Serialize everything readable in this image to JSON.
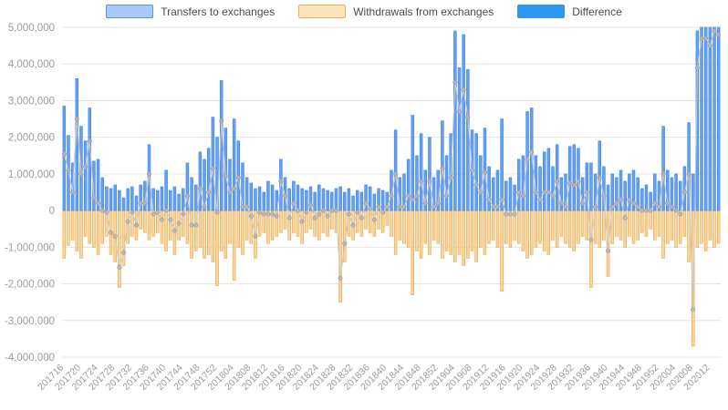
{
  "chart": {
    "background": "#ffffff",
    "legend": {
      "items": [
        {
          "label": "Transfers to exchanges",
          "fill": "#aac8f7",
          "border": "#5b94dd"
        },
        {
          "label": "Withdrawals from exchanges",
          "fill": "#fbe3bb",
          "border": "#f0ad55"
        },
        {
          "label": "Difference",
          "fill": "#2e96f3",
          "border": "#2e96f3"
        }
      ]
    },
    "axes": {
      "y_tick_labels": [
        "5,000,000",
        "4,000,000",
        "3,000,000",
        "2,000,000",
        "1,000,000",
        "0",
        "-1,000,000",
        "-2,000,000",
        "-3,000,000",
        "-4,000,000"
      ],
      "y_tick_values": [
        5000000,
        4000000,
        3000000,
        2000000,
        1000000,
        0,
        -1000000,
        -2000000,
        -3000000,
        -4000000
      ],
      "x_tick_labels": [
        "201716",
        "201720",
        "201724",
        "201728",
        "201732",
        "201736",
        "201740",
        "201744",
        "201748",
        "201752",
        "201804",
        "201808",
        "201812",
        "201816",
        "201820",
        "201824",
        "201828",
        "201832",
        "201836",
        "201840",
        "201844",
        "201848",
        "201852",
        "201904",
        "201908",
        "201912",
        "201916",
        "201920",
        "201924",
        "201928",
        "201932",
        "201936",
        "201940",
        "201944",
        "201948",
        "201952",
        "202004",
        "202008",
        "202012"
      ]
    }
  },
  "chart_data": {
    "type": "bar",
    "title": "",
    "xlabel": "",
    "ylabel": "",
    "x_unit": "ISO year-week",
    "value_unit_multiplier": 1000,
    "ylim": [
      -4000000,
      5000000
    ],
    "grid": true,
    "legend_position": "top",
    "x_tick_every": 4,
    "categories_ranges": [
      [
        2017,
        16,
        52
      ],
      [
        2018,
        1,
        52
      ],
      [
        2019,
        1,
        52
      ],
      [
        2020,
        1,
        14
      ]
    ],
    "series": [
      {
        "name": "Transfers to exchanges",
        "type": "bar",
        "fill": "#659ff2",
        "border": "#3f87e8",
        "values": [
          2850,
          2050,
          1300,
          3600,
          2300,
          1900,
          2800,
          1350,
          1400,
          900,
          650,
          600,
          700,
          550,
          350,
          600,
          650,
          400,
          700,
          800,
          1800,
          600,
          550,
          650,
          1100,
          550,
          650,
          450,
          600,
          1300,
          900,
          700,
          1600,
          1400,
          1700,
          2550,
          2000,
          3550,
          2250,
          1400,
          2500,
          1900,
          1300,
          900,
          750,
          600,
          650,
          500,
          800,
          700,
          550,
          1400,
          900,
          600,
          800,
          700,
          600,
          550,
          650,
          500,
          700,
          600,
          550,
          500,
          600,
          650,
          500,
          600,
          400,
          550,
          500,
          700,
          650,
          450,
          600,
          550,
          500,
          1100,
          2200,
          900,
          1000,
          1400,
          2600,
          1500,
          2100,
          1100,
          2000,
          900,
          1100,
          2450,
          1500,
          2100,
          4900,
          3900,
          4800,
          3850,
          2200,
          2100,
          1500,
          2250,
          1200,
          900,
          1100,
          2500,
          800,
          900,
          700,
          1400,
          1500,
          2700,
          2800,
          1500,
          1200,
          1600,
          1700,
          1200,
          1800,
          900,
          1000,
          1750,
          1800,
          1700,
          900,
          1300,
          1300,
          1000,
          1900,
          1200,
          700,
          1000,
          900,
          1100,
          800,
          1000,
          1100,
          900,
          600,
          700,
          500,
          1000,
          800,
          2300,
          1100,
          900,
          1000,
          800,
          1200,
          2400,
          1000,
          4900,
          5600,
          5800,
          5300,
          5900,
          5700
        ]
      },
      {
        "name": "Withdrawals from exchanges",
        "type": "bar",
        "fill": "#f9d49c",
        "border": "#efa33d",
        "values": [
          -1300,
          -950,
          -800,
          -1100,
          -1300,
          -700,
          -900,
          -1000,
          -1200,
          -900,
          -700,
          -1200,
          -1400,
          -2100,
          -1500,
          -900,
          -700,
          -800,
          -500,
          -600,
          -800,
          -700,
          -600,
          -900,
          -1100,
          -800,
          -1200,
          -800,
          -700,
          -900,
          -1300,
          -1100,
          -1000,
          -1300,
          -1200,
          -1400,
          -2050,
          -1100,
          -1300,
          -900,
          -1900,
          -1000,
          -1200,
          -800,
          -900,
          -1300,
          -700,
          -600,
          -900,
          -800,
          -700,
          -600,
          -500,
          -800,
          -600,
          -700,
          -900,
          -600,
          -500,
          -700,
          -800,
          -600,
          -700,
          -500,
          -600,
          -2500,
          -1400,
          -700,
          -800,
          -600,
          -700,
          -500,
          -600,
          -700,
          -500,
          -600,
          -400,
          -700,
          -1200,
          -800,
          -900,
          -1000,
          -2300,
          -1100,
          -1300,
          -900,
          -1200,
          -800,
          -900,
          -1300,
          -1100,
          -1200,
          -1400,
          -1200,
          -1500,
          -1300,
          -1100,
          -1400,
          -1000,
          -1200,
          -900,
          -800,
          -1000,
          -2200,
          -900,
          -1000,
          -800,
          -900,
          -1100,
          -1300,
          -1200,
          -1000,
          -900,
          -1100,
          -1200,
          -800,
          -1000,
          -700,
          -900,
          -1000,
          -1100,
          -900,
          -700,
          -800,
          -2100,
          -900,
          -1000,
          -800,
          -1800,
          -900,
          -700,
          -800,
          -1000,
          -700,
          -900,
          -800,
          -600,
          -700,
          -500,
          -800,
          -700,
          -1300,
          -900,
          -800,
          -1000,
          -900,
          -700,
          -1400,
          -3700,
          -1000,
          -900,
          -1100,
          -800,
          -1000,
          -900
        ]
      },
      {
        "name": "Difference",
        "type": "line",
        "color": "#c9c9c9",
        "marker": "circle",
        "marker_color": "#b5b5b5",
        "values": [
          1550,
          1100,
          500,
          2500,
          1000,
          1200,
          1900,
          350,
          200,
          0,
          -50,
          -600,
          -700,
          -1550,
          -1150,
          -300,
          -50,
          -400,
          200,
          200,
          1000,
          -100,
          -50,
          -250,
          0,
          -250,
          -550,
          -350,
          -100,
          400,
          -400,
          -400,
          600,
          100,
          500,
          1150,
          -50,
          2450,
          950,
          500,
          600,
          900,
          100,
          100,
          -150,
          -700,
          -50,
          -100,
          -100,
          -100,
          -150,
          800,
          400,
          -200,
          200,
          0,
          -300,
          -50,
          150,
          -200,
          -100,
          0,
          -150,
          0,
          0,
          -1850,
          -900,
          -100,
          -400,
          -50,
          -200,
          200,
          50,
          -250,
          100,
          -50,
          100,
          400,
          1000,
          100,
          100,
          400,
          300,
          400,
          800,
          200,
          800,
          100,
          200,
          1150,
          400,
          900,
          3500,
          2700,
          3300,
          2550,
          1100,
          700,
          500,
          1050,
          300,
          100,
          100,
          300,
          -100,
          -100,
          -100,
          500,
          400,
          1400,
          1600,
          500,
          300,
          500,
          500,
          400,
          800,
          200,
          100,
          750,
          700,
          800,
          200,
          500,
          -800,
          100,
          900,
          400,
          -1100,
          100,
          200,
          300,
          -200,
          300,
          200,
          100,
          0,
          0,
          0,
          200,
          100,
          1000,
          200,
          100,
          0,
          -100,
          500,
          1000,
          -2700,
          3900,
          4700,
          4700,
          4500,
          4900,
          4800
        ]
      }
    ]
  }
}
